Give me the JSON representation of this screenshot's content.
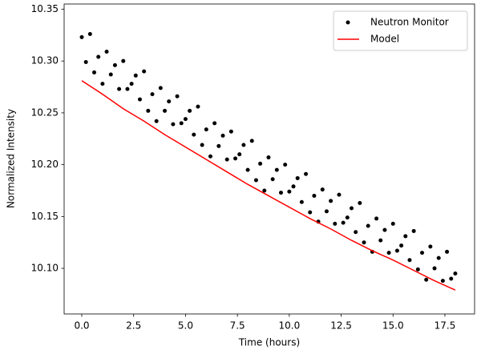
{
  "chart_data": {
    "type": "scatter",
    "xlabel": "Time (hours)",
    "ylabel": "Normalized Intensity",
    "xlim": [
      -0.85,
      18.93
    ],
    "ylim": [
      10.056,
      10.355
    ],
    "xticks": [
      {
        "value": 0,
        "label": "0.0"
      },
      2.5,
      {
        "value": 5,
        "label": "5.0"
      },
      7.5,
      {
        "value": 10,
        "label": "10.0"
      },
      12.5,
      {
        "value": 15,
        "label": "15.0"
      },
      17.5
    ],
    "yticks": [
      {
        "value": 10.1,
        "label": "10.10"
      },
      10.15,
      {
        "value": 10.2,
        "label": "10.20"
      },
      10.25,
      {
        "value": 10.3,
        "label": "10.30"
      },
      10.35
    ],
    "grid": false,
    "legend": "upper right",
    "series": [
      {
        "name": "Neutron Monitor",
        "type": "scatter",
        "color": "#000000",
        "x": [
          0,
          0.2,
          0.4,
          0.6,
          0.8,
          1,
          1.2,
          1.4,
          1.6,
          1.8,
          2,
          2.2,
          2.4,
          2.6,
          2.8,
          3,
          3.2,
          3.4,
          3.6,
          3.8,
          4,
          4.2,
          4.4,
          4.6,
          4.8,
          5,
          5.2,
          5.4,
          5.6,
          5.8,
          6,
          6.2,
          6.4,
          6.6,
          6.8,
          7,
          7.2,
          7.4,
          7.6,
          7.8,
          8,
          8.2,
          8.4,
          8.6,
          8.8,
          9,
          9.2,
          9.4,
          9.6,
          9.8,
          10,
          10.2,
          10.4,
          10.6,
          10.8,
          11,
          11.2,
          11.4,
          11.6,
          11.8,
          12,
          12.2,
          12.4,
          12.6,
          12.8,
          13,
          13.2,
          13.4,
          13.6,
          13.8,
          14,
          14.2,
          14.4,
          14.6,
          14.8,
          15,
          15.2,
          15.4,
          15.6,
          15.8,
          16,
          16.2,
          16.4,
          16.6,
          16.8,
          17,
          17.2,
          17.4,
          17.6,
          17.8,
          18
        ],
        "values": [
          10.323,
          10.299,
          10.326,
          10.289,
          10.304,
          10.278,
          10.309,
          10.287,
          10.296,
          10.273,
          10.3,
          10.273,
          10.278,
          10.286,
          10.263,
          10.29,
          10.252,
          10.268,
          10.242,
          10.274,
          10.252,
          10.261,
          10.239,
          10.266,
          10.24,
          10.244,
          10.252,
          10.229,
          10.256,
          10.219,
          10.234,
          10.208,
          10.24,
          10.218,
          10.228,
          10.205,
          10.232,
          10.206,
          10.21,
          10.219,
          10.195,
          10.223,
          10.185,
          10.201,
          10.175,
          10.207,
          10.186,
          10.195,
          10.173,
          10.2,
          10.174,
          10.179,
          10.187,
          10.164,
          10.191,
          10.154,
          10.17,
          10.145,
          10.176,
          10.155,
          10.165,
          10.143,
          10.171,
          10.144,
          10.149,
          10.158,
          10.135,
          10.163,
          10.125,
          10.141,
          10.116,
          10.148,
          10.127,
          10.137,
          10.115,
          10.143,
          10.117,
          10.122,
          10.131,
          10.108,
          10.136,
          10.099,
          10.115,
          10.089,
          10.121,
          10.1,
          10.11,
          10.088,
          10.116,
          10.09,
          10.095
        ]
      },
      {
        "name": "Model",
        "type": "line",
        "color": "#ff0000",
        "x": [
          0,
          1,
          2,
          3,
          4,
          5,
          6,
          7,
          8,
          9,
          10,
          11,
          12,
          13,
          14,
          15,
          16,
          17,
          18
        ],
        "values": [
          10.281,
          10.268,
          10.254,
          10.242,
          10.229,
          10.217,
          10.205,
          10.193,
          10.181,
          10.17,
          10.159,
          10.148,
          10.138,
          10.127,
          10.117,
          10.108,
          10.098,
          10.088,
          10.079
        ]
      }
    ]
  }
}
